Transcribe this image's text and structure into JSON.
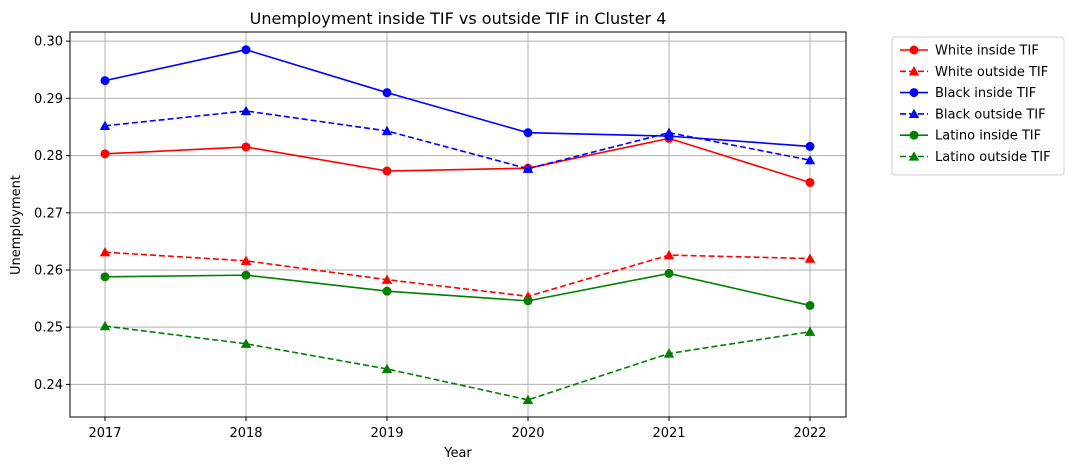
{
  "chart_data": {
    "type": "line",
    "title": "Unemployment inside TIF vs outside TIF in Cluster 4",
    "xlabel": "Year",
    "ylabel": "Unemployment",
    "x": [
      "2017",
      "2018",
      "2019",
      "2020",
      "2021",
      "2022"
    ],
    "yticks": [
      "0.24",
      "0.25",
      "0.26",
      "0.27",
      "0.28",
      "0.29",
      "0.30"
    ],
    "ylim": [
      0.2343,
      0.3016
    ],
    "grid": true,
    "legend_position": "outside-top-right",
    "series": [
      {
        "name": "White inside TIF",
        "color": "#ff0000",
        "dash": "solid",
        "marker": "circle",
        "values": [
          0.2803,
          0.2815,
          0.2773,
          0.2778,
          0.283,
          0.2753
        ]
      },
      {
        "name": "White outside TIF",
        "color": "#ff0000",
        "dash": "dashed",
        "marker": "triangle",
        "values": [
          0.2631,
          0.2616,
          0.2583,
          0.2554,
          0.2626,
          0.262
        ]
      },
      {
        "name": "Black inside TIF",
        "color": "#0000ff",
        "dash": "solid",
        "marker": "circle",
        "values": [
          0.2931,
          0.2985,
          0.291,
          0.284,
          0.2834,
          0.2816
        ]
      },
      {
        "name": "Black outside TIF",
        "color": "#0000ff",
        "dash": "dashed",
        "marker": "triangle",
        "values": [
          0.2852,
          0.2878,
          0.2843,
          0.2777,
          0.284,
          0.2792
        ]
      },
      {
        "name": "Latino inside TIF",
        "color": "#008000",
        "dash": "solid",
        "marker": "circle",
        "values": [
          0.2588,
          0.2591,
          0.2563,
          0.2546,
          0.2594,
          0.2538
        ]
      },
      {
        "name": "Latino outside TIF",
        "color": "#008000",
        "dash": "dashed",
        "marker": "triangle",
        "values": [
          0.2502,
          0.2471,
          0.2427,
          0.2373,
          0.2454,
          0.2492
        ]
      }
    ]
  }
}
